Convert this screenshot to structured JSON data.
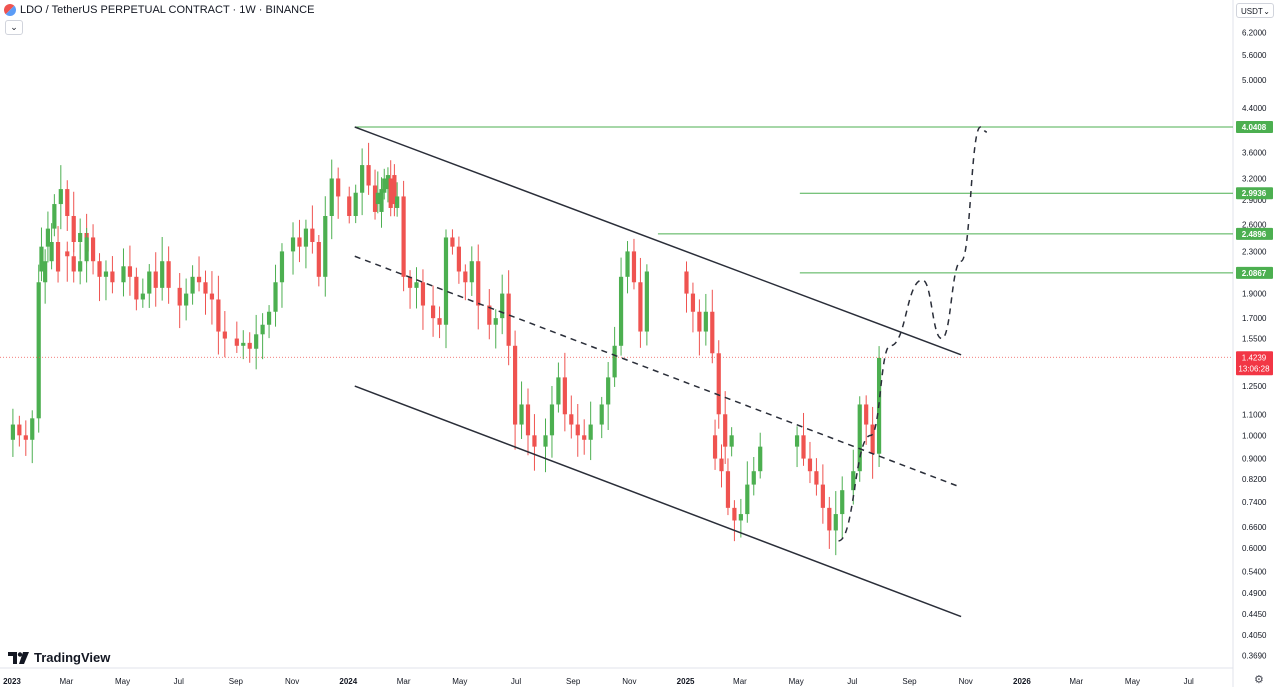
{
  "header": {
    "title": "LDO / TetherUS PERPETUAL CONTRACT · 1W · BINANCE",
    "collapse_glyph": "⌄"
  },
  "unit_selector": {
    "label": "USDT",
    "chevron": "⌄"
  },
  "brand": {
    "name": "TradingView"
  },
  "colors": {
    "up": "#4caf50",
    "down": "#ef5350",
    "level_line": "#4caf50",
    "channel": "#2a2e39",
    "price_label_bg": "#f23645"
  },
  "chart_data": {
    "type": "candlestick",
    "symbol": "LDO / TetherUS PERPETUAL CONTRACT",
    "interval": "1W",
    "exchange": "BINANCE",
    "y_scale": "log",
    "ylim": [
      0.355,
      6.5
    ],
    "y_ticks": [
      "6.2000",
      "5.6000",
      "5.0000",
      "4.4000",
      "3.6000",
      "3.2000",
      "2.9000",
      "2.6000",
      "2.3000",
      "1.9000",
      "1.7000",
      "1.5500",
      "1.2500",
      "1.1000",
      "1.0000",
      "0.9000",
      "0.8200",
      "0.7400",
      "0.6600",
      "0.6000",
      "0.5400",
      "0.4900",
      "0.4450",
      "0.4050",
      "0.3690"
    ],
    "x_ticks": [
      "2023",
      "Mar",
      "May",
      "Jul",
      "Sep",
      "Nov",
      "2024",
      "Mar",
      "May",
      "Jul",
      "Sep",
      "Nov",
      "2025",
      "Mar",
      "May",
      "Jul",
      "Sep",
      "Nov",
      "2026",
      "Mar",
      "May",
      "Jul"
    ],
    "x_range": [
      "2022-12-19",
      "2026-08-17"
    ],
    "candle_pattern": [
      {
        "month": "2023-01",
        "closes": [
          1.05,
          1.0,
          0.98,
          1.08,
          2.0,
          2.2,
          2.4,
          2.1
        ]
      },
      {
        "month": "2023-02",
        "closes": [
          2.35,
          2.55,
          2.85,
          3.05,
          2.7,
          2.4,
          2.5,
          2.3
        ]
      },
      {
        "month": "2023-03",
        "closes": [
          2.25,
          2.1,
          2.2,
          2.45,
          2.2,
          2.05,
          2.1,
          2.0
        ]
      },
      {
        "month": "2023-05",
        "closes": [
          2.15,
          2.05,
          1.85,
          1.9,
          2.1,
          1.95,
          2.2,
          1.95
        ]
      },
      {
        "month": "2023-07",
        "closes": [
          1.8,
          1.9,
          2.05,
          2.0,
          1.9,
          1.85,
          1.6,
          1.55
        ]
      },
      {
        "month": "2023-09",
        "closes": [
          1.5,
          1.52,
          1.48,
          1.58,
          1.65,
          1.75,
          2.0,
          2.3
        ]
      },
      {
        "month": "2023-11",
        "closes": [
          2.45,
          2.35,
          2.55,
          2.4,
          2.05,
          2.7,
          3.2,
          2.95
        ]
      },
      {
        "month": "2024-01",
        "closes": [
          2.7,
          3.0,
          3.4,
          3.1,
          2.75,
          3.05,
          3.25,
          2.85
        ]
      },
      {
        "month": "2024-02",
        "closes": [
          3.0,
          3.2,
          2.8,
          2.95,
          2.05,
          1.95,
          2.0,
          1.8
        ]
      },
      {
        "month": "2024-04",
        "closes": [
          1.7,
          1.65,
          2.45,
          2.35,
          2.1,
          2.0,
          2.2,
          1.8
        ]
      },
      {
        "month": "2024-06",
        "closes": [
          1.65,
          1.7,
          1.9,
          1.5,
          1.05,
          1.15,
          1.0,
          0.95
        ]
      },
      {
        "month": "2024-08",
        "closes": [
          1.0,
          1.15,
          1.3,
          1.1,
          1.05,
          1.0,
          0.98,
          1.05
        ]
      },
      {
        "month": "2024-10",
        "closes": [
          1.15,
          1.3,
          1.5,
          2.05,
          2.3,
          2.0,
          1.6,
          2.1
        ]
      },
      {
        "month": "2025-01",
        "closes": [
          1.9,
          1.75,
          1.6,
          1.75,
          1.45,
          1.1,
          0.95,
          1.0
        ]
      },
      {
        "month": "2025-02",
        "closes": [
          0.9,
          0.85,
          0.72,
          0.68,
          0.7,
          0.8,
          0.85,
          0.95
        ]
      },
      {
        "month": "2025-05",
        "closes": [
          1.0,
          0.9,
          0.85,
          0.8,
          0.72,
          0.65,
          0.7,
          0.78
        ]
      },
      {
        "month": "2025-07",
        "closes": [
          0.85,
          1.15,
          1.05,
          0.92,
          1.42
        ]
      }
    ],
    "levels": [
      {
        "label": "4.0408",
        "value": 4.0408
      },
      {
        "label": "2.9936",
        "value": 2.9936
      },
      {
        "label": "2.4896",
        "value": 2.4896
      },
      {
        "label": "2.0867",
        "value": 2.0867
      }
    ],
    "current_price": {
      "label": "1.4239",
      "value": 1.4239,
      "countdown": "13:06:28"
    },
    "channel": {
      "upper": [
        [
          "2024-01-08",
          4.04
        ],
        [
          "2025-10-27",
          1.44
        ]
      ],
      "middle": [
        [
          "2024-01-08",
          2.25
        ],
        [
          "2025-10-27",
          0.79
        ]
      ],
      "lower": [
        [
          "2024-01-08",
          1.25
        ],
        [
          "2025-10-27",
          0.44
        ]
      ]
    },
    "projection": [
      [
        "2025-06-16",
        0.62
      ],
      [
        "2025-07-21",
        1.0
      ],
      [
        "2025-08-11",
        1.5
      ],
      [
        "2025-09-15",
        2.02
      ],
      [
        "2025-10-06",
        1.55
      ],
      [
        "2025-10-27",
        2.2
      ],
      [
        "2025-11-17",
        4.04
      ],
      [
        "2025-11-24",
        3.95
      ]
    ]
  }
}
